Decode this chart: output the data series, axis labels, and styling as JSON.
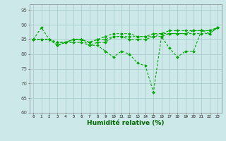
{
  "title": "",
  "xlabel": "Humidité relative (%)",
  "ylabel": "",
  "xlim": [
    -0.5,
    23.5
  ],
  "ylim": [
    60,
    97
  ],
  "yticks": [
    60,
    65,
    70,
    75,
    80,
    85,
    90,
    95
  ],
  "bg_color": "#cce8e8",
  "grid_color": "#aacccc",
  "line_color": "#00aa00",
  "series": [
    [
      85,
      89,
      85,
      83,
      84,
      84,
      84,
      83,
      83,
      81,
      79,
      81,
      80,
      77,
      76,
      67,
      86,
      82,
      79,
      81,
      81,
      88,
      87,
      89
    ],
    [
      85,
      85,
      85,
      83,
      84,
      85,
      85,
      83,
      84,
      84,
      86,
      86,
      85,
      85,
      85,
      86,
      86,
      87,
      87,
      87,
      87,
      87,
      87,
      89
    ],
    [
      85,
      85,
      85,
      84,
      84,
      85,
      85,
      84,
      85,
      85,
      86,
      86,
      86,
      86,
      86,
      86,
      87,
      87,
      87,
      87,
      88,
      88,
      88,
      89
    ],
    [
      85,
      85,
      85,
      84,
      84,
      85,
      85,
      84,
      85,
      86,
      87,
      87,
      87,
      86,
      86,
      87,
      87,
      88,
      88,
      88,
      88,
      88,
      88,
      89
    ]
  ]
}
